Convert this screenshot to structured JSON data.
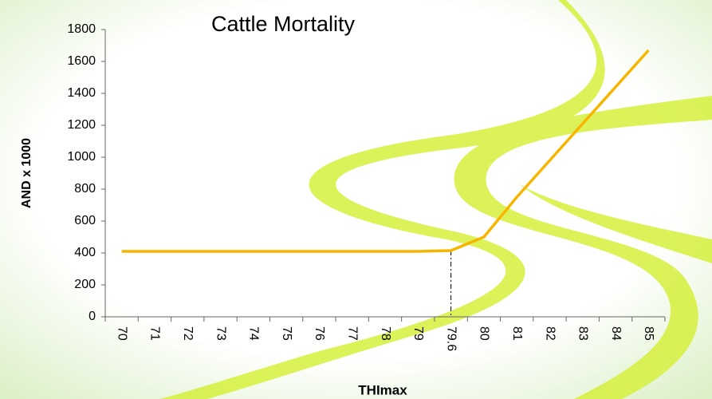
{
  "chart_data": {
    "type": "line",
    "title": "Cattle Mortality",
    "x_label": "THImax",
    "y_label": "AND x 1000",
    "categories": [
      "70",
      "71",
      "72",
      "73",
      "74",
      "75",
      "76",
      "77",
      "78",
      "79",
      "79.6",
      "80",
      "81",
      "82",
      "83",
      "84",
      "85"
    ],
    "values": [
      410,
      410,
      410,
      410,
      410,
      410,
      410,
      410,
      410,
      410,
      415,
      500,
      750,
      980,
      1210,
      1440,
      1670
    ],
    "color": "#f7b500",
    "ylim": [
      0,
      1800
    ],
    "yticks": [
      0,
      200,
      400,
      600,
      800,
      1000,
      1200,
      1400,
      1600,
      1800
    ]
  }
}
